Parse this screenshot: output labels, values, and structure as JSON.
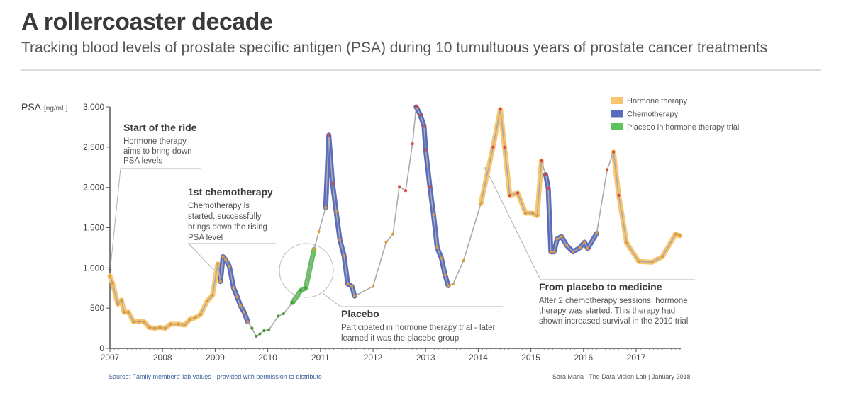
{
  "title": "A rollercoaster decade",
  "subtitle": "Tracking blood levels of prostate specific antigen (PSA) during 10 tumultuous years of prostate cancer treatments",
  "source": "Source: Family members' lab values - provided with permission to distribute",
  "credit": "Sara Maria | The Data Vision Lab | January 2018",
  "chart_data": {
    "type": "line",
    "ylabel": "PSA",
    "yunit": "[ng/mL]",
    "xlim": [
      2007,
      2017.85
    ],
    "ylim": [
      0,
      3000
    ],
    "x_ticks": [
      "2007",
      "2008",
      "2009",
      "2010",
      "2011",
      "2012",
      "2013",
      "2014",
      "2015",
      "2016",
      "2017"
    ],
    "y_ticks": [
      "0",
      "500",
      "1,000",
      "1,500",
      "2,000",
      "2,500",
      "3,000"
    ],
    "grid": false,
    "legend_position": "top-right",
    "legend": [
      {
        "label": "Hormone therapy",
        "color": "#f9c66f"
      },
      {
        "label": "Chemotherapy",
        "color": "#5a6cbd"
      },
      {
        "label": "Placebo in hormone therapy trial",
        "color": "#5cc25a"
      }
    ],
    "colors": {
      "line": "#aaaaaa",
      "hormone": "#f9c66f",
      "chemo": "#5a6cbd",
      "placebo": "#5cc25a",
      "dot_orange": "#e09b3a",
      "dot_green": "#4e9a3a",
      "dot_red": "#e0433a"
    },
    "points": [
      [
        2007.0,
        900
      ],
      [
        2007.05,
        810
      ],
      [
        2007.15,
        550
      ],
      [
        2007.22,
        600
      ],
      [
        2007.27,
        450
      ],
      [
        2007.35,
        450
      ],
      [
        2007.45,
        330
      ],
      [
        2007.55,
        330
      ],
      [
        2007.65,
        330
      ],
      [
        2007.75,
        260
      ],
      [
        2007.85,
        250
      ],
      [
        2007.95,
        260
      ],
      [
        2008.05,
        250
      ],
      [
        2008.15,
        300
      ],
      [
        2008.3,
        300
      ],
      [
        2008.42,
        290
      ],
      [
        2008.52,
        360
      ],
      [
        2008.62,
        380
      ],
      [
        2008.72,
        420
      ],
      [
        2008.85,
        590
      ],
      [
        2008.95,
        660
      ],
      [
        2009.05,
        1050
      ],
      [
        2009.1,
        830
      ],
      [
        2009.15,
        1140
      ],
      [
        2009.2,
        1100
      ],
      [
        2009.27,
        1020
      ],
      [
        2009.35,
        750
      ],
      [
        2009.42,
        640
      ],
      [
        2009.48,
        530
      ],
      [
        2009.55,
        450
      ],
      [
        2009.62,
        330
      ],
      [
        2009.7,
        250
      ],
      [
        2009.78,
        150
      ],
      [
        2009.85,
        180
      ],
      [
        2009.93,
        220
      ],
      [
        2010.02,
        230
      ],
      [
        2010.2,
        400
      ],
      [
        2010.3,
        430
      ],
      [
        2010.47,
        570
      ],
      [
        2010.63,
        720
      ],
      [
        2010.72,
        750
      ],
      [
        2010.88,
        1230
      ],
      [
        2010.97,
        1450
      ],
      [
        2011.1,
        1750
      ],
      [
        2011.16,
        2650
      ],
      [
        2011.23,
        2050
      ],
      [
        2011.3,
        1700
      ],
      [
        2011.37,
        1350
      ],
      [
        2011.45,
        1150
      ],
      [
        2011.52,
        800
      ],
      [
        2011.6,
        770
      ],
      [
        2011.65,
        650
      ],
      [
        2012.0,
        770
      ],
      [
        2012.25,
        1320
      ],
      [
        2012.38,
        1420
      ],
      [
        2012.5,
        2010
      ],
      [
        2012.62,
        1960
      ],
      [
        2012.75,
        2540
      ],
      [
        2012.82,
        3000
      ],
      [
        2012.9,
        2900
      ],
      [
        2012.97,
        2760
      ],
      [
        2013.0,
        2470
      ],
      [
        2013.08,
        2010
      ],
      [
        2013.15,
        1660
      ],
      [
        2013.22,
        1250
      ],
      [
        2013.3,
        1120
      ],
      [
        2013.37,
        910
      ],
      [
        2013.43,
        780
      ],
      [
        2013.52,
        800
      ],
      [
        2013.72,
        1090
      ],
      [
        2014.05,
        1800
      ],
      [
        2014.28,
        2500
      ],
      [
        2014.42,
        2970
      ],
      [
        2014.5,
        2500
      ],
      [
        2014.6,
        1900
      ],
      [
        2014.75,
        1930
      ],
      [
        2014.9,
        1680
      ],
      [
        2015.03,
        1680
      ],
      [
        2015.12,
        1650
      ],
      [
        2015.2,
        2330
      ],
      [
        2015.28,
        2160
      ],
      [
        2015.33,
        1990
      ],
      [
        2015.38,
        1200
      ],
      [
        2015.44,
        1200
      ],
      [
        2015.5,
        1360
      ],
      [
        2015.58,
        1390
      ],
      [
        2015.68,
        1280
      ],
      [
        2015.8,
        1200
      ],
      [
        2015.93,
        1250
      ],
      [
        2016.02,
        1320
      ],
      [
        2016.08,
        1240
      ],
      [
        2016.25,
        1430
      ],
      [
        2016.45,
        2220
      ],
      [
        2016.57,
        2440
      ],
      [
        2016.67,
        1900
      ],
      [
        2016.82,
        1310
      ],
      [
        2017.05,
        1080
      ],
      [
        2017.3,
        1070
      ],
      [
        2017.5,
        1140
      ],
      [
        2017.75,
        1420
      ],
      [
        2017.83,
        1400
      ]
    ],
    "segments": [
      {
        "treatment": "hormone",
        "from": 0,
        "to": 21
      },
      {
        "treatment": "chemo",
        "from": 22,
        "to": 30
      },
      {
        "treatment": "placebo",
        "from": 38,
        "to": 41
      },
      {
        "treatment": "chemo",
        "from": 43,
        "to": 51
      },
      {
        "treatment": "chemo",
        "from": 58,
        "to": 67
      },
      {
        "treatment": "hormone",
        "from": 70,
        "to": 79
      },
      {
        "treatment": "chemo",
        "from": 80,
        "to": 91
      },
      {
        "treatment": "hormone",
        "from": 93,
        "to": 100
      }
    ],
    "annotations": [
      {
        "title": "Start of the ride",
        "lines": [
          "Hormone therapy",
          "aims to bring down",
          "PSA levels"
        ]
      },
      {
        "title": "1st chemotherapy",
        "lines": [
          "Chemotherapy is",
          "started, successfully",
          "brings down the rising",
          "PSA level"
        ]
      },
      {
        "title": "Placebo",
        "lines": [
          "Participated in hormone therapy trial - later",
          "learned it was the placebo group"
        ]
      },
      {
        "title": "From placebo to medicine",
        "lines": [
          "After 2 chemotherapy sessions, hormone",
          "therapy was started. This therapy had",
          "shown increased survival in the 2010 trial"
        ]
      }
    ]
  }
}
